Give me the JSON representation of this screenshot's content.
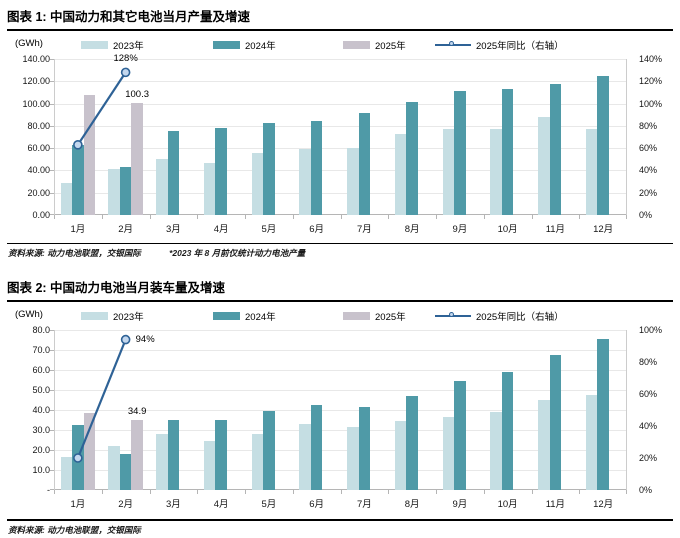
{
  "colors": {
    "y2023": "#c5dee3",
    "y2024": "#4f9aa7",
    "y2025": "#c8c2cc",
    "line": "#2e6296",
    "marker_fill": "#c3d7ee",
    "grid": "#e8e8e8",
    "axis_line": "#b5b5b5"
  },
  "charts": [
    {
      "title": "图表 1: 中国动力和其它电池当月产量及增速",
      "unit": "(GWh)",
      "source": "资料来源: 动力电池联盟，交银国际",
      "note": "*2023 年 8 月前仅统计动力电池产量",
      "chart_data": {
        "type": "bar+line",
        "categories": [
          "1月",
          "2月",
          "3月",
          "4月",
          "5月",
          "6月",
          "7月",
          "8月",
          "9月",
          "10月",
          "11月",
          "12月"
        ],
        "series": [
          {
            "name": "2023年",
            "color_key": "y2023",
            "values": [
              29,
              41,
              50,
              47,
              56,
              59.5,
              60,
              73,
              77,
              77,
              88,
              77
            ]
          },
          {
            "name": "2024年",
            "color_key": "y2024",
            "values": [
              63,
              43.5,
              75.5,
              78,
              83,
              84.5,
              91.5,
              101,
              111,
              113.5,
              117.5,
              125
            ]
          },
          {
            "name": "2025年",
            "color_key": "y2025",
            "values": [
              107.5,
              100.3,
              null,
              null,
              null,
              null,
              null,
              null,
              null,
              null,
              null,
              null
            ]
          }
        ],
        "line": {
          "name": "2025年同比（右轴）",
          "axis": "right",
          "values": [
            63,
            128,
            null,
            null,
            null,
            null,
            null,
            null,
            null,
            null,
            null,
            null
          ]
        },
        "left_axis": {
          "min": 0,
          "max": 140,
          "title": "(GWh)",
          "tick_labels": [
            "140.00",
            "120.00",
            "100.00",
            "80.00",
            "60.00",
            "40.00",
            "20.00",
            "0.00"
          ]
        },
        "right_axis": {
          "min": 0,
          "max": 140,
          "tick_labels": [
            "140%",
            "120%",
            "100%",
            "80%",
            "60%",
            "40%",
            "20%",
            "0%"
          ]
        },
        "grid": true,
        "legend_position": "top",
        "annotations": [
          {
            "text": "128%",
            "target": "line",
            "month": 2,
            "placement": "above"
          },
          {
            "text": "100.3",
            "target": "series-2025",
            "month": 2,
            "placement": "above"
          }
        ]
      }
    },
    {
      "title": "图表 2: 中国动力电池当月装车量及增速",
      "unit": "(GWh)",
      "source": "资料来源: 动力电池联盟，交银国际",
      "note": "",
      "chart_data": {
        "type": "bar+line",
        "categories": [
          "1月",
          "2月",
          "3月",
          "4月",
          "5月",
          "6月",
          "7月",
          "8月",
          "9月",
          "10月",
          "11月",
          "12月"
        ],
        "series": [
          {
            "name": "2023年",
            "color_key": "y2023",
            "values": [
              16.3,
              21.8,
              27.8,
              24.7,
              28.2,
              33,
              31.7,
              34.6,
              36.4,
              38.9,
              44.9,
              47.5
            ]
          },
          {
            "name": "2024年",
            "color_key": "y2024",
            "values": [
              32.3,
              17.8,
              35,
              35.2,
              39.7,
              42.3,
              41.6,
              46.8,
              54.5,
              59,
              67.5,
              75.5
            ]
          },
          {
            "name": "2025年",
            "color_key": "y2025",
            "values": [
              38.5,
              34.9,
              null,
              null,
              null,
              null,
              null,
              null,
              null,
              null,
              null,
              null
            ]
          }
        ],
        "line": {
          "name": "2025年同比（右轴）",
          "axis": "right",
          "values": [
            20,
            94,
            null,
            null,
            null,
            null,
            null,
            null,
            null,
            null,
            null,
            null
          ]
        },
        "left_axis": {
          "min": 0,
          "max": 80,
          "title": "(GWh)",
          "tick_labels": [
            "80.0",
            "70.0",
            "60.0",
            "50.0",
            "40.0",
            "30.0",
            "20.0",
            "10.0",
            "-"
          ]
        },
        "right_axis": {
          "min": 0,
          "max": 100,
          "tick_labels": [
            "100%",
            "80%",
            "60%",
            "40%",
            "20%",
            "0%"
          ]
        },
        "grid": true,
        "legend_position": "top",
        "annotations": [
          {
            "text": "94%",
            "target": "line",
            "month": 2,
            "placement": "right"
          },
          {
            "text": "34.9",
            "target": "series-2025",
            "month": 2,
            "placement": "above"
          }
        ]
      }
    }
  ]
}
